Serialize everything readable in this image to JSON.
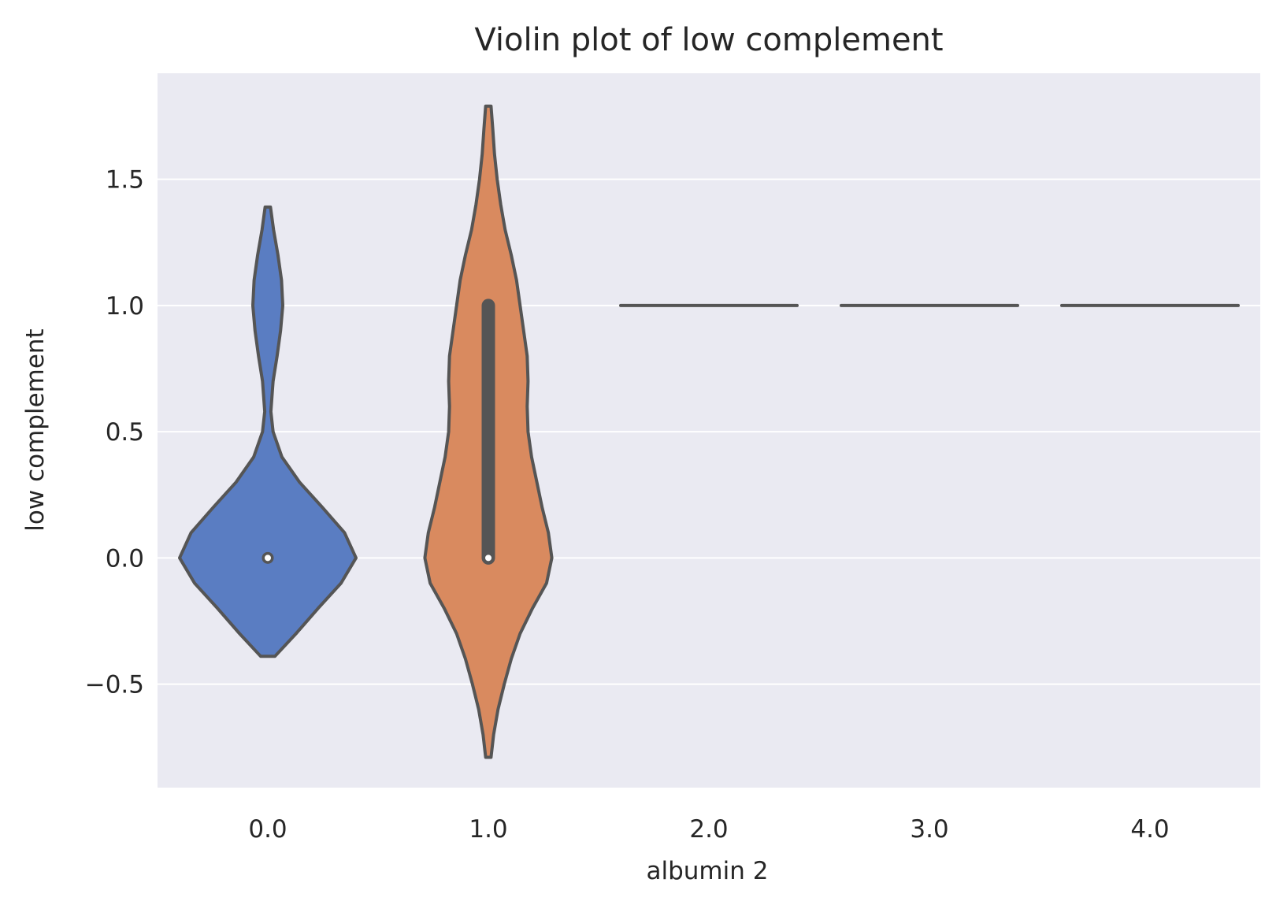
{
  "chart_data": {
    "type": "violin",
    "title": "Violin plot of low complement",
    "xlabel": "albumin 2",
    "ylabel": "low complement",
    "categories": [
      "0.0",
      "1.0",
      "2.0",
      "3.0",
      "4.0"
    ],
    "yticks": [
      -0.5,
      0.0,
      0.5,
      1.0,
      1.5
    ],
    "ytick_labels": [
      "−0.5",
      "0.0",
      "0.5",
      "1.0",
      "1.5"
    ],
    "ylim": [
      -0.91,
      1.92
    ],
    "grid": true,
    "colors": {
      "background": "#eaeaf2",
      "grid": "#ffffff",
      "outline": "#555555",
      "text": "#262626",
      "violins": [
        "#5a7dc2",
        "#d98a5f"
      ]
    },
    "violins": [
      {
        "category": "0.0",
        "extent": [
          -0.39,
          1.39
        ],
        "median": 0.0,
        "box": [
          0.0,
          0.0
        ],
        "profile": [
          [
            -0.39,
            0.08
          ],
          [
            -0.3,
            0.32
          ],
          [
            -0.2,
            0.57
          ],
          [
            -0.1,
            0.83
          ],
          [
            0.0,
            1.0
          ],
          [
            0.1,
            0.87
          ],
          [
            0.2,
            0.62
          ],
          [
            0.3,
            0.36
          ],
          [
            0.4,
            0.16
          ],
          [
            0.5,
            0.06
          ],
          [
            0.58,
            0.035
          ],
          [
            0.7,
            0.06
          ],
          [
            0.8,
            0.105
          ],
          [
            0.9,
            0.145
          ],
          [
            1.0,
            0.17
          ],
          [
            1.1,
            0.155
          ],
          [
            1.2,
            0.115
          ],
          [
            1.3,
            0.065
          ],
          [
            1.39,
            0.03
          ]
        ]
      },
      {
        "category": "1.0",
        "extent": [
          -0.79,
          1.79
        ],
        "median": 0.0,
        "box": [
          0.0,
          1.0
        ],
        "profile": [
          [
            -0.79,
            0.03
          ],
          [
            -0.7,
            0.06
          ],
          [
            -0.6,
            0.11
          ],
          [
            -0.5,
            0.18
          ],
          [
            -0.4,
            0.26
          ],
          [
            -0.3,
            0.36
          ],
          [
            -0.2,
            0.5
          ],
          [
            -0.1,
            0.66
          ],
          [
            0.0,
            0.72
          ],
          [
            0.1,
            0.68
          ],
          [
            0.2,
            0.61
          ],
          [
            0.3,
            0.55
          ],
          [
            0.4,
            0.49
          ],
          [
            0.5,
            0.45
          ],
          [
            0.6,
            0.44
          ],
          [
            0.7,
            0.45
          ],
          [
            0.8,
            0.44
          ],
          [
            0.9,
            0.4
          ],
          [
            1.0,
            0.36
          ],
          [
            1.1,
            0.32
          ],
          [
            1.2,
            0.26
          ],
          [
            1.3,
            0.19
          ],
          [
            1.4,
            0.14
          ],
          [
            1.5,
            0.1
          ],
          [
            1.6,
            0.07
          ],
          [
            1.7,
            0.05
          ],
          [
            1.79,
            0.03
          ]
        ]
      }
    ],
    "flat_lines": [
      {
        "category": "2.0",
        "value": 1.0
      },
      {
        "category": "3.0",
        "value": 1.0
      },
      {
        "category": "4.0",
        "value": 1.0
      }
    ]
  }
}
